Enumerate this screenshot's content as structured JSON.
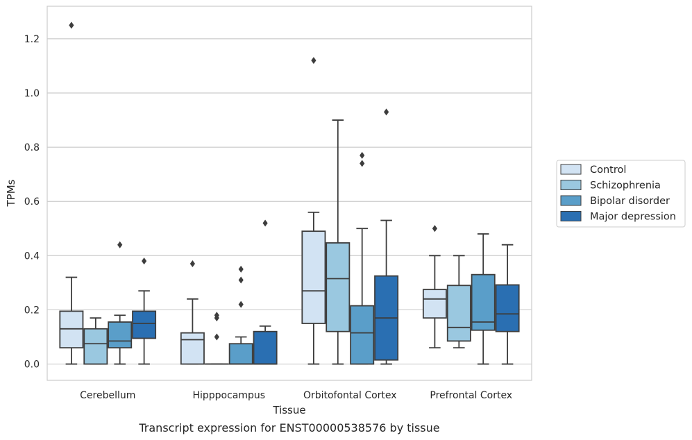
{
  "chart_data": {
    "type": "box",
    "title": "",
    "caption": "Transcript expression for ENST00000538576 by tissue",
    "xlabel": "Tissue",
    "ylabel": "TPMs",
    "ylim": [
      -0.06,
      1.32
    ],
    "yticks": [
      "0.0",
      "0.2",
      "0.4",
      "0.6",
      "0.8",
      "1.0",
      "1.2"
    ],
    "ytick_values": [
      0.0,
      0.2,
      0.4,
      0.6,
      0.8,
      1.0,
      1.2
    ],
    "grid": "horizontal",
    "legend_position": "right",
    "categories": [
      "Cerebellum",
      "Hipppocampus",
      "Orbitofontal Cortex",
      "Prefrontal Cortex"
    ],
    "series": [
      {
        "name": "Control",
        "color": "#d2e3f3",
        "boxes": [
          {
            "whislo": 0.0,
            "q1": 0.06,
            "med": 0.13,
            "q3": 0.195,
            "whishi": 0.32,
            "fliers": [
              1.25
            ]
          },
          {
            "whislo": 0.0,
            "q1": 0.0,
            "med": 0.09,
            "q3": 0.115,
            "whishi": 0.24,
            "fliers": [
              0.37
            ]
          },
          {
            "whislo": 0.0,
            "q1": 0.15,
            "med": 0.27,
            "q3": 0.49,
            "whishi": 0.56,
            "fliers": [
              1.12
            ]
          },
          {
            "whislo": 0.06,
            "q1": 0.17,
            "med": 0.24,
            "q3": 0.275,
            "whishi": 0.4,
            "fliers": [
              0.5
            ]
          }
        ]
      },
      {
        "name": "Schizophrenia",
        "color": "#9ac8e0",
        "boxes": [
          {
            "whislo": 0.0,
            "q1": 0.0,
            "med": 0.075,
            "q3": 0.13,
            "whishi": 0.17,
            "fliers": []
          },
          {
            "whislo": 0.0,
            "q1": 0.0,
            "med": 0.0,
            "q3": 0.0,
            "whishi": 0.0,
            "fliers": [
              0.1,
              0.17,
              0.18
            ]
          },
          {
            "whislo": 0.0,
            "q1": 0.12,
            "med": 0.315,
            "q3": 0.447,
            "whishi": 0.9,
            "fliers": []
          },
          {
            "whislo": 0.06,
            "q1": 0.085,
            "med": 0.135,
            "q3": 0.29,
            "whishi": 0.4,
            "fliers": []
          }
        ]
      },
      {
        "name": "Bipolar disorder",
        "color": "#5a9ec9",
        "boxes": [
          {
            "whislo": 0.0,
            "q1": 0.06,
            "med": 0.085,
            "q3": 0.155,
            "whishi": 0.18,
            "fliers": [
              0.44
            ]
          },
          {
            "whislo": 0.0,
            "q1": 0.0,
            "med": 0.0,
            "q3": 0.075,
            "whishi": 0.1,
            "fliers": [
              0.22,
              0.31,
              0.35
            ]
          },
          {
            "whislo": 0.0,
            "q1": 0.0,
            "med": 0.115,
            "q3": 0.215,
            "whishi": 0.5,
            "fliers": [
              0.74,
              0.77
            ]
          },
          {
            "whislo": 0.0,
            "q1": 0.125,
            "med": 0.155,
            "q3": 0.33,
            "whishi": 0.48,
            "fliers": []
          }
        ]
      },
      {
        "name": "Major depression",
        "color": "#2a6fb2",
        "boxes": [
          {
            "whislo": 0.0,
            "q1": 0.095,
            "med": 0.15,
            "q3": 0.195,
            "whishi": 0.27,
            "fliers": [
              0.38
            ]
          },
          {
            "whislo": 0.0,
            "q1": 0.0,
            "med": 0.0,
            "q3": 0.12,
            "whishi": 0.14,
            "fliers": [
              0.52
            ]
          },
          {
            "whislo": 0.0,
            "q1": 0.015,
            "med": 0.17,
            "q3": 0.325,
            "whishi": 0.53,
            "fliers": [
              0.93
            ]
          },
          {
            "whislo": 0.0,
            "q1": 0.12,
            "med": 0.185,
            "q3": 0.292,
            "whishi": 0.44,
            "fliers": []
          }
        ]
      }
    ]
  }
}
